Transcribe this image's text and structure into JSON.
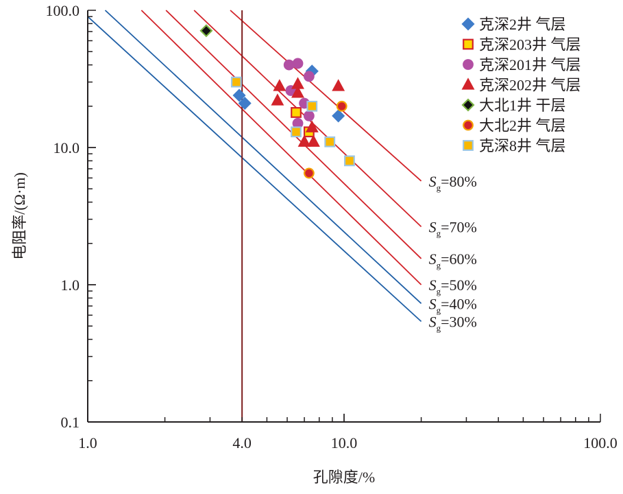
{
  "chart_data": {
    "type": "scatter",
    "xlabel": "孔隙度/%",
    "ylabel": "电阻率/(Ω·m)",
    "x_scale": "log",
    "y_scale": "log",
    "xlim": [
      1.0,
      100.0
    ],
    "ylim": [
      0.1,
      100.0
    ],
    "x_ticks": [
      "1.0",
      "4.0",
      "10.0",
      "100.0"
    ],
    "y_ticks": [
      "0.1",
      "1.0",
      "10.0",
      "100.0"
    ],
    "cutoff_line": {
      "x": 4.0,
      "color": "#7b1c1c"
    },
    "legend_position": "top-right",
    "sg_lines": [
      {
        "label": "=80%",
        "symbol": "S",
        "sub": "g",
        "color": "#d2232a",
        "x": [
          3.6,
          20
        ],
        "y": [
          100,
          5.7
        ]
      },
      {
        "label": "=70%",
        "symbol": "S",
        "sub": "g",
        "color": "#d2232a",
        "x": [
          2.6,
          20
        ],
        "y": [
          100,
          2.65
        ]
      },
      {
        "label": "=60%",
        "symbol": "S",
        "sub": "g",
        "color": "#d2232a",
        "x": [
          2.02,
          20
        ],
        "y": [
          100,
          1.55
        ]
      },
      {
        "label": "=50%",
        "symbol": "S",
        "sub": "g",
        "color": "#d2232a",
        "x": [
          1.62,
          20
        ],
        "y": [
          100,
          1.0
        ]
      },
      {
        "label": "=40%",
        "symbol": "S",
        "sub": "g",
        "color": "#1f5fa6",
        "x": [
          1.17,
          20
        ],
        "y": [
          100,
          0.73
        ]
      },
      {
        "label": "=30%",
        "symbol": "S",
        "sub": "g",
        "color": "#1f5fa6",
        "x": [
          1.0,
          20
        ],
        "y": [
          90,
          0.54
        ]
      }
    ],
    "series": [
      {
        "name": "克深2井 气层",
        "marker": "diamond",
        "fill": "#3f7cc9",
        "stroke": "#3f7cc9",
        "points": [
          [
            3.9,
            24
          ],
          [
            4.1,
            21
          ],
          [
            7.5,
            36
          ],
          [
            9.5,
            17
          ]
        ]
      },
      {
        "name": "克深203井 气层",
        "marker": "square",
        "fill": "#ffd700",
        "stroke": "#d2232a",
        "points": [
          [
            6.5,
            18
          ],
          [
            7.3,
            13
          ]
        ]
      },
      {
        "name": "克深201井 气层",
        "marker": "circle",
        "fill": "#b24fa3",
        "stroke": "#b24fa3",
        "points": [
          [
            6.1,
            40
          ],
          [
            6.6,
            41
          ],
          [
            7.3,
            33
          ],
          [
            6.2,
            26
          ],
          [
            7.0,
            21
          ],
          [
            7.3,
            17
          ],
          [
            6.6,
            15
          ]
        ]
      },
      {
        "name": "克深202井 气层",
        "marker": "triangle",
        "fill": "#d2232a",
        "stroke": "#d2232a",
        "points": [
          [
            5.6,
            28
          ],
          [
            6.6,
            29
          ],
          [
            9.5,
            28
          ],
          [
            5.5,
            22
          ],
          [
            6.6,
            25
          ],
          [
            7.5,
            14
          ],
          [
            7.0,
            11
          ],
          [
            7.6,
            11
          ]
        ]
      },
      {
        "name": "大北1井 干层",
        "marker": "diamond",
        "fill": "#111111",
        "stroke": "#7bb342",
        "points": [
          [
            2.9,
            71
          ]
        ]
      },
      {
        "name": "大北2井 气层",
        "marker": "circle",
        "fill": "#d2232a",
        "stroke": "#f5a000",
        "points": [
          [
            9.8,
            20
          ],
          [
            7.3,
            6.5
          ]
        ]
      },
      {
        "name": "克深8井 气层",
        "marker": "square",
        "fill": "#f9b800",
        "stroke": "#9cc6e4",
        "points": [
          [
            3.8,
            30
          ],
          [
            6.5,
            13
          ],
          [
            7.5,
            20
          ],
          [
            8.8,
            11
          ],
          [
            10.5,
            8
          ]
        ]
      }
    ]
  }
}
